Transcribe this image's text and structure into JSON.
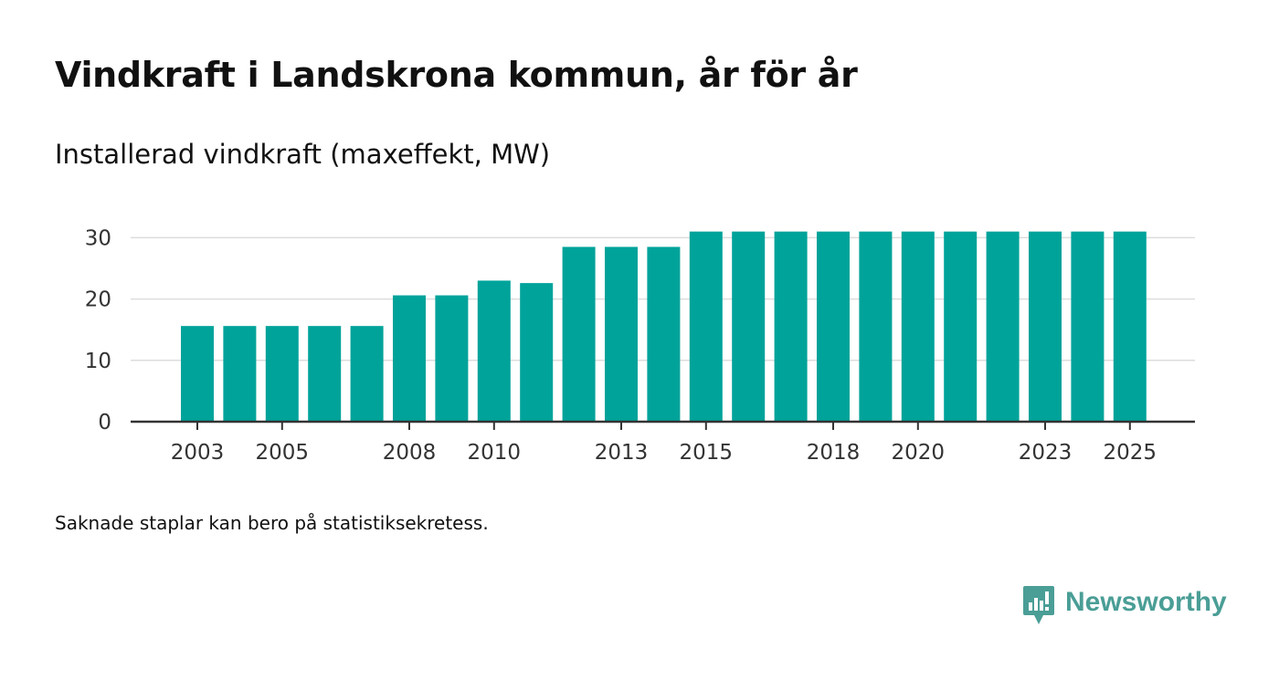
{
  "header": {
    "title": "Vindkraft i Landskrona kommun, år för år",
    "subtitle": "Installerad vindkraft (maxeffekt, MW)"
  },
  "footer": {
    "note": "Saknade staplar kan bero på statistiksekretess.",
    "brand_name": "Newsworthy"
  },
  "colors": {
    "bar": "#00a39a",
    "grid": "#dddddd",
    "axis": "#333333",
    "brand": "#4a9e96"
  },
  "chart_data": {
    "type": "bar",
    "title": "Installerad vindkraft (maxeffekt, MW)",
    "xlabel": "",
    "ylabel": "",
    "categories": [
      "2003",
      "2004",
      "2005",
      "2006",
      "2007",
      "2008",
      "2009",
      "2010",
      "2011",
      "2012",
      "2013",
      "2014",
      "2015",
      "2016",
      "2017",
      "2018",
      "2019",
      "2020",
      "2021",
      "2022",
      "2023",
      "2024",
      "2025"
    ],
    "values": [
      15.6,
      15.6,
      15.6,
      15.6,
      15.6,
      20.6,
      20.6,
      23,
      22.6,
      28.5,
      28.5,
      28.5,
      31,
      31,
      31,
      31,
      31,
      31,
      31,
      31,
      31,
      31,
      31
    ],
    "x_tick_labels": [
      "2003",
      "2005",
      "2008",
      "2010",
      "2013",
      "2015",
      "2018",
      "2020",
      "2023",
      "2025"
    ],
    "y_ticks": [
      0,
      10,
      20,
      30
    ],
    "ylim": [
      0,
      31
    ],
    "grid": true,
    "legend": "none"
  }
}
